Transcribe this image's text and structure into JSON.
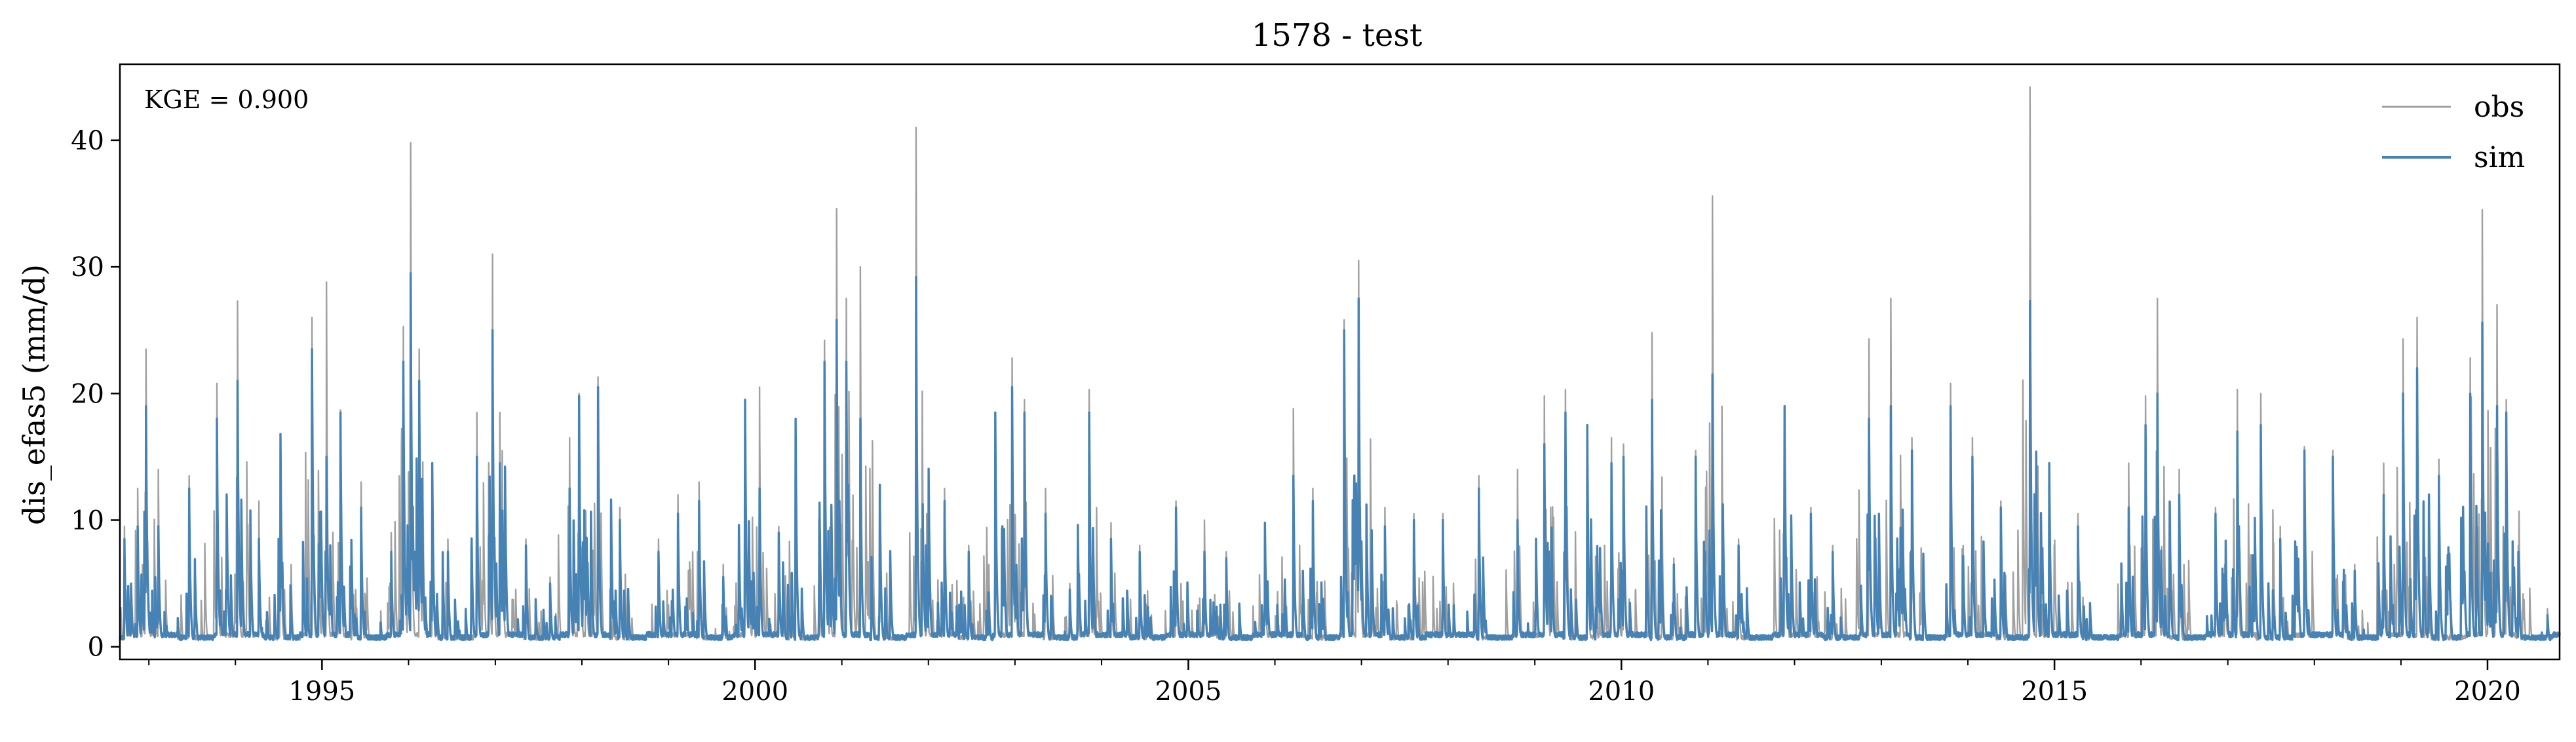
{
  "chart_data": {
    "type": "line",
    "title": "1578 - test",
    "xlabel": "",
    "ylabel": "dis_efas5 (mm/d)",
    "x_range": [
      "1992-09-01",
      "2020-10-31"
    ],
    "ylim": [
      -1,
      46
    ],
    "x_ticks": [
      "1995",
      "2000",
      "2005",
      "2010",
      "2015",
      "2020"
    ],
    "y_ticks": [
      "0",
      "10",
      "20",
      "30",
      "40"
    ],
    "grid": false,
    "legend": {
      "placement": "top-right",
      "entries": [
        "obs",
        "sim"
      ]
    },
    "annotation": "KGE = 0.900",
    "colors": {
      "obs": "#a0a0a0",
      "sim": "#4682b4"
    },
    "series": [
      {
        "name": "obs",
        "peaks": [
          [
            "1992-09-20",
            9.5
          ],
          [
            "1992-11-15",
            12.5
          ],
          [
            "1992-12-20",
            23.5
          ],
          [
            "1993-02-10",
            14.0
          ],
          [
            "1993-06-20",
            13.5
          ],
          [
            "1993-10-15",
            20.8
          ],
          [
            "1994-01-10",
            27.3
          ],
          [
            "1994-04-10",
            11.5
          ],
          [
            "1994-07-10",
            16.5
          ],
          [
            "1994-11-20",
            26.0
          ],
          [
            "1995-01-20",
            28.8
          ],
          [
            "1995-03-20",
            18.7
          ],
          [
            "1995-06-15",
            13.0
          ],
          [
            "1995-10-20",
            9.0
          ],
          [
            "1995-12-10",
            25.3
          ],
          [
            "1996-01-10",
            39.8
          ],
          [
            "1996-02-15",
            23.5
          ],
          [
            "1996-04-10",
            14.5
          ],
          [
            "1996-06-15",
            8.5
          ],
          [
            "1996-10-15",
            18.5
          ],
          [
            "1996-12-20",
            31.0
          ],
          [
            "1997-01-20",
            18.5
          ],
          [
            "1997-05-10",
            8.5
          ],
          [
            "1997-08-20",
            5.5
          ],
          [
            "1997-11-10",
            16.5
          ],
          [
            "1997-12-20",
            20.0
          ],
          [
            "1998-03-10",
            21.3
          ],
          [
            "1998-06-10",
            11.0
          ],
          [
            "1998-11-20",
            8.5
          ],
          [
            "1999-02-10",
            12.0
          ],
          [
            "1999-05-10",
            13.0
          ],
          [
            "1999-08-20",
            6.5
          ],
          [
            "1999-11-20",
            19.0
          ],
          [
            "2000-01-20",
            20.5
          ],
          [
            "2000-04-10",
            9.5
          ],
          [
            "2000-06-20",
            18.0
          ],
          [
            "2000-10-20",
            24.2
          ],
          [
            "2000-12-10",
            34.6
          ],
          [
            "2001-01-20",
            27.5
          ],
          [
            "2001-03-20",
            30.0
          ],
          [
            "2001-06-10",
            12.8
          ],
          [
            "2001-11-10",
            41.0
          ],
          [
            "2002-03-10",
            12.5
          ],
          [
            "2002-06-20",
            8.0
          ],
          [
            "2002-10-10",
            18.5
          ],
          [
            "2002-12-20",
            22.8
          ],
          [
            "2003-02-10",
            19.5
          ],
          [
            "2003-05-10",
            12.5
          ],
          [
            "2003-08-20",
            5.0
          ],
          [
            "2003-11-10",
            20.3
          ],
          [
            "2004-02-10",
            9.8
          ],
          [
            "2004-06-10",
            8.0
          ],
          [
            "2004-11-10",
            11.5
          ],
          [
            "2005-03-10",
            10.0
          ],
          [
            "2005-06-10",
            7.5
          ],
          [
            "2005-11-20",
            9.5
          ],
          [
            "2006-03-20",
            18.8
          ],
          [
            "2006-06-10",
            12.5
          ],
          [
            "2006-10-20",
            25.8
          ],
          [
            "2006-12-20",
            30.5
          ],
          [
            "2007-04-10",
            11.0
          ],
          [
            "2007-08-10",
            10.5
          ],
          [
            "2007-12-10",
            10.5
          ],
          [
            "2008-05-10",
            13.5
          ],
          [
            "2008-10-20",
            14.0
          ],
          [
            "2009-02-10",
            19.8
          ],
          [
            "2009-05-10",
            20.3
          ],
          [
            "2009-08-10",
            17.5
          ],
          [
            "2009-11-20",
            16.5
          ],
          [
            "2010-01-10",
            16.0
          ],
          [
            "2010-05-10",
            24.8
          ],
          [
            "2010-08-10",
            7.0
          ],
          [
            "2010-11-10",
            15.5
          ],
          [
            "2011-01-20",
            35.6
          ],
          [
            "2011-05-10",
            8.5
          ],
          [
            "2011-11-20",
            19.0
          ],
          [
            "2012-03-10",
            11.0
          ],
          [
            "2012-06-10",
            8.0
          ],
          [
            "2012-11-10",
            24.3
          ],
          [
            "2013-02-10",
            27.5
          ],
          [
            "2013-05-10",
            16.5
          ],
          [
            "2013-10-20",
            20.8
          ],
          [
            "2014-01-20",
            16.5
          ],
          [
            "2014-05-20",
            11.5
          ],
          [
            "2014-09-20",
            44.2
          ],
          [
            "2014-12-10",
            14.5
          ],
          [
            "2015-04-10",
            10.5
          ],
          [
            "2015-11-10",
            14.5
          ],
          [
            "2016-01-20",
            19.8
          ],
          [
            "2016-03-10",
            27.5
          ],
          [
            "2016-06-10",
            14.0
          ],
          [
            "2016-11-10",
            11.0
          ],
          [
            "2017-02-10",
            20.3
          ],
          [
            "2017-05-20",
            20.0
          ],
          [
            "2017-08-10",
            9.5
          ],
          [
            "2017-11-20",
            15.8
          ],
          [
            "2018-03-20",
            15.5
          ],
          [
            "2018-06-20",
            6.5
          ],
          [
            "2018-10-20",
            14.5
          ],
          [
            "2019-01-10",
            24.3
          ],
          [
            "2019-03-10",
            26.0
          ],
          [
            "2019-06-10",
            14.8
          ],
          [
            "2019-10-20",
            22.8
          ],
          [
            "2019-12-10",
            34.5
          ],
          [
            "2020-02-10",
            27.0
          ],
          [
            "2020-03-20",
            19.5
          ],
          [
            "2020-05-10",
            8.0
          ],
          [
            "2020-09-10",
            3.0
          ]
        ]
      },
      {
        "name": "sim",
        "peaks": [
          [
            "1992-09-20",
            8.5
          ],
          [
            "1992-11-15",
            9.5
          ],
          [
            "1992-12-20",
            19.0
          ],
          [
            "1993-02-10",
            9.5
          ],
          [
            "1993-06-20",
            12.5
          ],
          [
            "1993-10-15",
            18.0
          ],
          [
            "1994-01-10",
            21.0
          ],
          [
            "1994-04-10",
            8.5
          ],
          [
            "1994-07-10",
            16.8
          ],
          [
            "1994-11-20",
            23.5
          ],
          [
            "1995-01-20",
            15.0
          ],
          [
            "1995-03-20",
            18.5
          ],
          [
            "1995-06-15",
            11.0
          ],
          [
            "1995-10-20",
            7.5
          ],
          [
            "1995-12-10",
            22.5
          ],
          [
            "1996-01-10",
            29.5
          ],
          [
            "1996-02-15",
            21.0
          ],
          [
            "1996-04-10",
            14.5
          ],
          [
            "1996-06-15",
            7.5
          ],
          [
            "1996-10-15",
            15.0
          ],
          [
            "1996-12-20",
            25.0
          ],
          [
            "1997-01-20",
            14.5
          ],
          [
            "1997-05-10",
            8.0
          ],
          [
            "1997-08-20",
            5.0
          ],
          [
            "1997-11-10",
            12.5
          ],
          [
            "1997-12-20",
            19.8
          ],
          [
            "1998-03-10",
            20.5
          ],
          [
            "1998-06-10",
            10.0
          ],
          [
            "1998-11-20",
            7.5
          ],
          [
            "1999-02-10",
            10.5
          ],
          [
            "1999-05-10",
            11.5
          ],
          [
            "1999-08-20",
            5.5
          ],
          [
            "1999-11-20",
            19.5
          ],
          [
            "2000-01-20",
            12.5
          ],
          [
            "2000-04-10",
            9.0
          ],
          [
            "2000-06-20",
            18.0
          ],
          [
            "2000-10-20",
            22.5
          ],
          [
            "2000-12-10",
            25.8
          ],
          [
            "2001-01-20",
            22.5
          ],
          [
            "2001-03-20",
            18.0
          ],
          [
            "2001-06-10",
            12.8
          ],
          [
            "2001-11-10",
            29.2
          ],
          [
            "2002-03-10",
            11.5
          ],
          [
            "2002-06-20",
            7.5
          ],
          [
            "2002-10-10",
            18.5
          ],
          [
            "2002-12-20",
            20.5
          ],
          [
            "2003-02-10",
            18.5
          ],
          [
            "2003-05-10",
            10.5
          ],
          [
            "2003-08-20",
            4.5
          ],
          [
            "2003-11-10",
            18.5
          ],
          [
            "2004-02-10",
            8.5
          ],
          [
            "2004-06-10",
            7.5
          ],
          [
            "2004-11-10",
            11.0
          ],
          [
            "2005-03-10",
            7.5
          ],
          [
            "2005-06-10",
            7.0
          ],
          [
            "2005-11-20",
            9.8
          ],
          [
            "2006-03-20",
            13.5
          ],
          [
            "2006-06-10",
            11.5
          ],
          [
            "2006-10-20",
            25.0
          ],
          [
            "2006-12-20",
            27.5
          ],
          [
            "2007-04-10",
            9.5
          ],
          [
            "2007-08-10",
            10.0
          ],
          [
            "2007-12-10",
            10.0
          ],
          [
            "2008-05-10",
            12.5
          ],
          [
            "2008-10-20",
            10.0
          ],
          [
            "2009-02-10",
            16.0
          ],
          [
            "2009-05-10",
            18.5
          ],
          [
            "2009-08-10",
            17.5
          ],
          [
            "2009-11-20",
            14.5
          ],
          [
            "2010-01-10",
            15.0
          ],
          [
            "2010-05-10",
            19.5
          ],
          [
            "2010-08-10",
            6.5
          ],
          [
            "2010-11-10",
            15.0
          ],
          [
            "2011-01-20",
            21.5
          ],
          [
            "2011-05-10",
            8.0
          ],
          [
            "2011-11-20",
            19.0
          ],
          [
            "2012-03-10",
            10.5
          ],
          [
            "2012-06-10",
            7.5
          ],
          [
            "2012-11-10",
            18.0
          ],
          [
            "2013-02-10",
            19.0
          ],
          [
            "2013-05-10",
            15.5
          ],
          [
            "2013-10-20",
            19.0
          ],
          [
            "2014-01-20",
            15.0
          ],
          [
            "2014-05-20",
            11.0
          ],
          [
            "2014-09-20",
            27.3
          ],
          [
            "2014-12-10",
            14.5
          ],
          [
            "2015-04-10",
            9.5
          ],
          [
            "2015-11-10",
            11.0
          ],
          [
            "2016-01-20",
            17.5
          ],
          [
            "2016-03-10",
            20.0
          ],
          [
            "2016-06-10",
            12.0
          ],
          [
            "2016-11-10",
            10.5
          ],
          [
            "2017-02-10",
            17.0
          ],
          [
            "2017-05-20",
            17.5
          ],
          [
            "2017-08-10",
            8.5
          ],
          [
            "2017-11-20",
            15.5
          ],
          [
            "2018-03-20",
            15.0
          ],
          [
            "2018-06-20",
            6.0
          ],
          [
            "2018-10-20",
            12.0
          ],
          [
            "2019-01-10",
            20.0
          ],
          [
            "2019-03-10",
            22.0
          ],
          [
            "2019-06-10",
            13.5
          ],
          [
            "2019-10-20",
            20.0
          ],
          [
            "2019-12-10",
            25.6
          ],
          [
            "2020-02-10",
            19.0
          ],
          [
            "2020-03-20",
            18.5
          ],
          [
            "2020-05-10",
            7.5
          ],
          [
            "2020-09-10",
            2.5
          ]
        ]
      }
    ]
  }
}
